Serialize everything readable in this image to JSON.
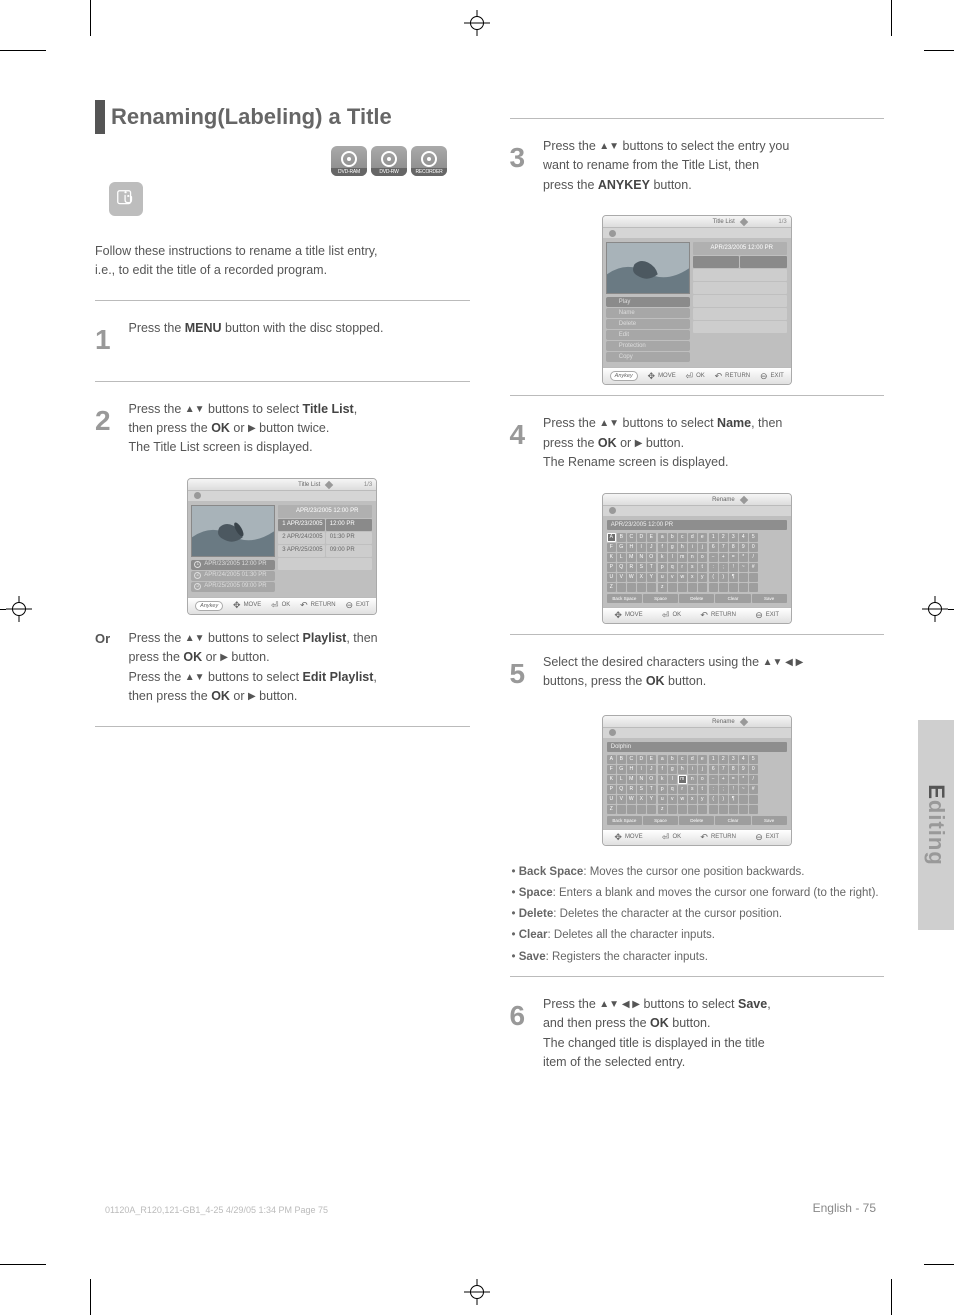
{
  "page_number": "English - 75",
  "foot_left": "01120A_R120,121-GB1_4-25  4/29/05  1:34 PM  Page 75",
  "crop_marks": {
    "color": "#000000"
  },
  "sidebar_label": "Editing",
  "sidebar_highlight_chars": "E",
  "left": {
    "title": "Renaming(Labeling) a Title",
    "subtitle_line1": "Follow these instructions to rename a title list entry,",
    "subtitle_line2": "i.e., to edit the title of a recorded program.",
    "disc_labels": [
      "DVD-RAM",
      "DVD-RW",
      "RECORDER"
    ],
    "steps": [
      {
        "n": "1",
        "text": "Press the <b>MENU</b> button with the disc stopped."
      },
      {
        "n": "2",
        "text": "Press the <span class=\"arrow\">▲▼</span> buttons to select <b>Title List</b>,<br>then press the <b>OK</b> or <span class=\"arrow\">▶</span> button twice.<br>The Title List screen is displayed."
      },
      {
        "n": "2b",
        "text": "Press the <span class=\"arrow\">▲▼</span> buttons to select <b>Playlist</b>, then<br>press the <b>OK</b> or <span class=\"arrow\">▶</span> button.<br>Press the <span class=\"arrow\">▲▼</span> buttons to select <b>Edit Playlist</b>,<br>then press the <b>OK</b> or <span class=\"arrow\">▶</span> button.",
        "prefix": "Or"
      }
    ],
    "osd1": {
      "title": "Title List",
      "meta": "1/3",
      "left_rows": [
        {
          "icon": "1",
          "label": "APR/23/2005 12:00 PR",
          "sel": true
        },
        {
          "icon": "2",
          "label": "APR/24/2005 01:30 PR"
        },
        {
          "icon": "3",
          "label": "APR/25/2005 09:00 PR"
        }
      ],
      "right_header": "APR/23/2005 12:00 PR",
      "right_rows": [
        {
          "a": "1  APR/23/2005",
          "b": "12:00 PR"
        },
        {
          "a": "2  APR/24/2005",
          "b": "01:30 PR"
        },
        {
          "a": "3  APR/25/2005",
          "b": "09:00 PR"
        }
      ],
      "foot": {
        "a": "Anykey",
        "b": "MOVE",
        "c": "OK",
        "d": "RETURN",
        "e": "EXIT"
      }
    }
  },
  "right": {
    "steps": [
      {
        "n": "3",
        "text": "Press the <span class=\"arrow\">▲▼</span> buttons to select the entry you<br>want to rename from the Title List, then<br>press the <b>ANYKEY</b> button."
      },
      {
        "n": "4",
        "text": "Press the <span class=\"arrow\">▲▼</span> buttons to select <b>Name</b>, then<br>press the <b>OK</b> or <span class=\"arrow\">▶</span> button.<br>The Rename screen is displayed."
      },
      {
        "n": "5",
        "text": "Select the desired characters using the <span class=\"arrow\">▲▼ ◀ ▶</span><br>buttons, press the <b>OK</b> button."
      },
      {
        "n": "6",
        "text": "Press the <span class=\"arrow\">▲▼ ◀ ▶</span> buttons to select <b>Save</b>,<br>and then press the <b>OK</b> button.<br>The changed title is displayed in the title<br>item of the selected entry."
      }
    ],
    "bullets": [
      "<b>Back Space</b>: Moves the cursor one position backwards.",
      "<b>Space</b>: Enters a blank and moves the cursor one forward (to the right).",
      "<b>Delete</b>: Deletes the character at the cursor position.",
      "<b>Clear</b>: Deletes all the character inputs.",
      "<b>Save</b>: Registers the character inputs."
    ],
    "osd2": {
      "title": "Title List",
      "meta": "1/3",
      "popup": [
        "Play",
        "Name",
        "Delete",
        "Edit",
        "Protection",
        "Copy"
      ],
      "popup_sel": 0,
      "foot": {
        "a": "Anykey",
        "b": "MOVE",
        "c": "OK",
        "d": "RETURN",
        "e": "EXIT"
      }
    },
    "osd3": {
      "title": "Rename",
      "meta": "",
      "strip": "APR/23/2005 12:00 PR",
      "sel_key": "A",
      "keys_upper": [
        "A",
        "B",
        "C",
        "D",
        "E",
        "F",
        "G",
        "H",
        "I",
        "J",
        "K",
        "L",
        "M",
        "N",
        "O",
        "P",
        "Q",
        "R",
        "S",
        "T",
        "U",
        "V",
        "W",
        "X",
        "Y",
        "Z"
      ],
      "keys_lower": [
        "a",
        "b",
        "c",
        "d",
        "e",
        "f",
        "g",
        "h",
        "i",
        "j",
        "k",
        "l",
        "m",
        "n",
        "o",
        "p",
        "q",
        "r",
        "s",
        "t",
        "u",
        "v",
        "w",
        "x",
        "y",
        "z"
      ],
      "keys_num": [
        "1",
        "2",
        "3",
        "4",
        "5",
        "6",
        "7",
        "8",
        "9",
        "0",
        "−",
        "+",
        "=",
        "*",
        "/",
        ":",
        ";",
        "!",
        "~",
        "#",
        "(",
        ")",
        "¶"
      ],
      "keys_actions": [
        "Back Space",
        "Space",
        "Delete",
        "Clear",
        "Save"
      ],
      "foot": {
        "b": "MOVE",
        "c": "OK",
        "d": "RETURN",
        "e": "EXIT"
      }
    },
    "osd4": {
      "title": "Rename",
      "meta": "",
      "strip": "Dolphin",
      "sel_key": "m",
      "foot": {
        "b": "MOVE",
        "c": "OK",
        "d": "RETURN",
        "e": "EXIT"
      }
    }
  },
  "colors": {
    "page_bg": "#ffffff",
    "text": "#555555",
    "heading": "#666666",
    "rule": "#bbbbbb",
    "osd_bg": "#bfbfbf",
    "osd_cell": "#cdcdcd",
    "osd_dark": "#8a8a8a",
    "key": "#9e9e9e",
    "sidebar": "#cfcfcf",
    "sidebar_text": "#999999",
    "sidebar_hi": "#555555"
  }
}
